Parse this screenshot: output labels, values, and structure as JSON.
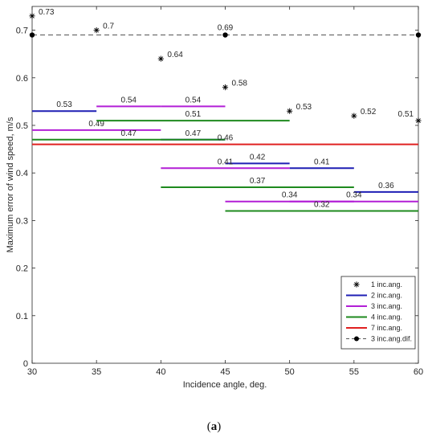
{
  "caption": {
    "open": "(",
    "letter": "a",
    "close": ")"
  },
  "chart_data": {
    "type": "line",
    "xlabel": "Incidence angle, deg.",
    "ylabel": "Maximum error of wind speed, m/s",
    "xlim": [
      30,
      60
    ],
    "ylim": [
      0,
      0.75
    ],
    "xticks": [
      "30",
      "35",
      "40",
      "45",
      "50",
      "55",
      "60"
    ],
    "yticks": [
      "0",
      "0.1",
      "0.2",
      "0.3",
      "0.4",
      "0.5",
      "0.6",
      "0.7"
    ],
    "grid": false,
    "legend_position": "bottom-right",
    "legend": [
      {
        "name": "1 inc.ang.",
        "style": "star",
        "color": "#000000"
      },
      {
        "name": "2 inc.ang.",
        "style": "line",
        "color": "#1f1fb4"
      },
      {
        "name": "3 inc.ang.",
        "style": "line",
        "color": "#b21fd6"
      },
      {
        "name": "4 inc.ang.",
        "style": "line",
        "color": "#1e8a1e"
      },
      {
        "name": "7 inc.ang.",
        "style": "line",
        "color": "#e02020"
      },
      {
        "name": "3 inc.ang.dif.",
        "style": "dashed-dot",
        "color": "#000000"
      }
    ],
    "series": [
      {
        "name": "1 inc.ang.",
        "kind": "points",
        "color": "#000000",
        "points": [
          {
            "x": 30,
            "y": 0.73,
            "label": "0.73"
          },
          {
            "x": 35,
            "y": 0.7,
            "label": "0.7"
          },
          {
            "x": 40,
            "y": 0.64,
            "label": "0.64"
          },
          {
            "x": 45,
            "y": 0.58,
            "label": "0.58"
          },
          {
            "x": 50,
            "y": 0.53,
            "label": "0.53"
          },
          {
            "x": 55,
            "y": 0.52,
            "label": "0.52"
          },
          {
            "x": 60,
            "y": 0.51,
            "label": "0.51"
          }
        ]
      },
      {
        "name": "2 inc.ang.",
        "kind": "segments",
        "color": "#1f1fb4",
        "segments": [
          {
            "x1": 30,
            "x2": 35,
            "y": 0.53,
            "label": "0.53"
          },
          {
            "x1": 40,
            "x2": 45,
            "y": 0.47,
            "label": "0.47"
          },
          {
            "x1": 45,
            "x2": 50,
            "y": 0.42,
            "label": "0.42"
          },
          {
            "x1": 50,
            "x2": 55,
            "y": 0.41,
            "label": "0.41"
          },
          {
            "x1": 55,
            "x2": 60,
            "y": 0.36,
            "label": "0.36"
          }
        ]
      },
      {
        "name": "3 inc.ang.",
        "kind": "segments",
        "color": "#b21fd6",
        "segments": [
          {
            "x1": 35,
            "x2": 40,
            "y": 0.54,
            "label": "0.54"
          },
          {
            "x1": 40,
            "x2": 45,
            "y": 0.54,
            "label": "0.54"
          },
          {
            "x1": 30,
            "x2": 40,
            "y": 0.49,
            "label": "0.49"
          },
          {
            "x1": 40,
            "x2": 50,
            "y": 0.41,
            "label": "0.41"
          },
          {
            "x1": 45,
            "x2": 55,
            "y": 0.34,
            "label": "0.34"
          },
          {
            "x1": 50,
            "x2": 60,
            "y": 0.34,
            "label": "0.34"
          }
        ]
      },
      {
        "name": "4 inc.ang.",
        "kind": "segments",
        "color": "#1e8a1e",
        "segments": [
          {
            "x1": 35,
            "x2": 50,
            "y": 0.51,
            "label": "0.51"
          },
          {
            "x1": 30,
            "x2": 45,
            "y": 0.47,
            "label": "0.47"
          },
          {
            "x1": 40,
            "x2": 55,
            "y": 0.37,
            "label": "0.37"
          },
          {
            "x1": 45,
            "x2": 60,
            "y": 0.32,
            "label": "0.32"
          }
        ]
      },
      {
        "name": "7 inc.ang.",
        "kind": "segments",
        "color": "#e02020",
        "segments": [
          {
            "x1": 30,
            "x2": 60,
            "y": 0.46,
            "label": "0.46"
          }
        ]
      },
      {
        "name": "3 inc.ang.dif.",
        "kind": "dashed",
        "color": "#000000",
        "points": [
          {
            "x": 30,
            "y": 0.69,
            "label": ""
          },
          {
            "x": 45,
            "y": 0.69,
            "label": "0.69"
          },
          {
            "x": 60,
            "y": 0.69,
            "label": ""
          }
        ]
      }
    ]
  }
}
